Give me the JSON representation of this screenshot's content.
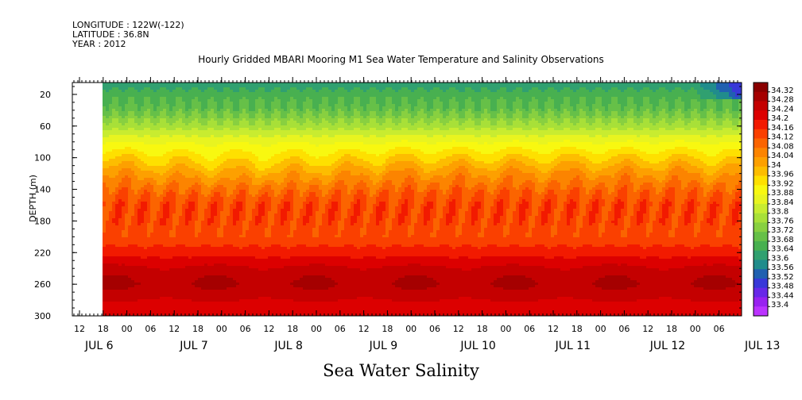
{
  "header": {
    "longitude": "LONGITUDE : 122W(-122)",
    "latitude": "LATITUDE : 36.8N",
    "year": "YEAR : 2012",
    "title": "Hourly Gridded MBARI Mooring M1 Sea Water Temperature and Salinity Observations",
    "variable_title": "Sea Water Salinity"
  },
  "chart_data": {
    "type": "heatmap",
    "title": "Hourly Gridded MBARI Mooring M1 Sea Water Temperature and Salinity Observations",
    "xlabel": "",
    "ylabel": "DEPTH (m)",
    "colorbar_label": "Sea Water Salinity",
    "x_axis": {
      "hour_ticks": [
        "12",
        "18",
        "00",
        "06",
        "12",
        "18",
        "00",
        "06",
        "12",
        "18",
        "00",
        "06",
        "12",
        "18",
        "00",
        "06",
        "12",
        "18",
        "00",
        "06",
        "12",
        "18",
        "00",
        "06",
        "12",
        "18",
        "00",
        "06"
      ],
      "day_labels": [
        "JUL 6",
        "JUL 7",
        "JUL 8",
        "JUL 9",
        "JUL 10",
        "JUL 11",
        "JUL 12",
        "JUL 13"
      ],
      "range": [
        "2012-07-06 09:00",
        "2012-07-13 12:00"
      ],
      "data_start": "2012-07-06 17:00"
    },
    "y_axis": {
      "ticks": [
        "20",
        "60",
        "100",
        "140",
        "180",
        "220",
        "260",
        "300"
      ],
      "range": [
        5,
        300
      ],
      "inverted": true
    },
    "colorbar": {
      "labels": [
        "34.32",
        "34.28",
        "34.24",
        "34.2",
        "34.16",
        "34.12",
        "34.08",
        "34.04",
        "34",
        "33.96",
        "33.92",
        "33.88",
        "33.84",
        "33.8",
        "33.76",
        "33.72",
        "33.68",
        "33.64",
        "33.6",
        "33.56",
        "33.52",
        "33.48",
        "33.44",
        "33.4"
      ],
      "colors": [
        "#8a0000",
        "#a50000",
        "#c40000",
        "#dc0000",
        "#f21a00",
        "#fa4000",
        "#fb6400",
        "#fc8400",
        "#fda000",
        "#fdbd00",
        "#fee000",
        "#f8f810",
        "#e8f420",
        "#c8ec30",
        "#a8e038",
        "#88d040",
        "#66c048",
        "#48b050",
        "#30a070",
        "#208c8c",
        "#2060b0",
        "#3838d8",
        "#6828e8",
        "#9822f0",
        "#bb33ff"
      ],
      "top_label": "34.32",
      "bottom_label": "33.4"
    },
    "depth_profile": [
      {
        "depth": 10,
        "salinity": 33.63
      },
      {
        "depth": 20,
        "salinity": 33.66
      },
      {
        "depth": 40,
        "salinity": 33.7
      },
      {
        "depth": 60,
        "salinity": 33.78
      },
      {
        "depth": 80,
        "salinity": 33.88
      },
      {
        "depth": 100,
        "salinity": 33.96
      },
      {
        "depth": 120,
        "salinity": 34.04
      },
      {
        "depth": 140,
        "salinity": 34.1
      },
      {
        "depth": 160,
        "salinity": 34.14
      },
      {
        "depth": 180,
        "salinity": 34.14
      },
      {
        "depth": 200,
        "salinity": 34.13
      },
      {
        "depth": 220,
        "salinity": 34.18
      },
      {
        "depth": 240,
        "salinity": 34.25
      },
      {
        "depth": 260,
        "salinity": 34.28
      },
      {
        "depth": 280,
        "salinity": 34.24
      },
      {
        "depth": 300,
        "salinity": 34.22
      }
    ]
  }
}
